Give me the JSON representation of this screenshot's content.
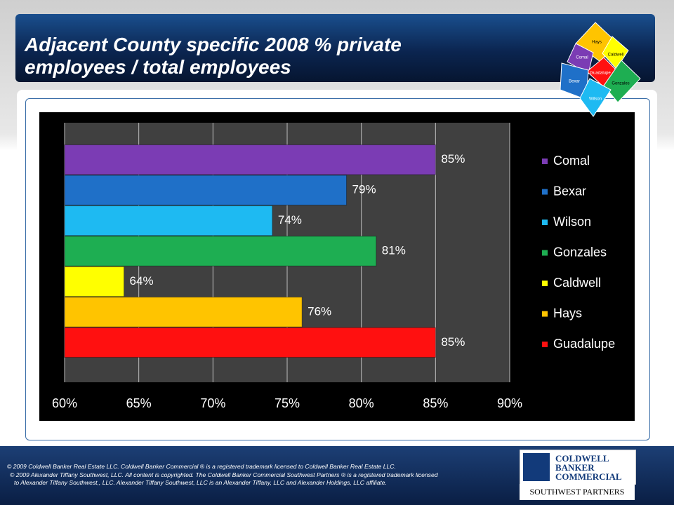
{
  "chart_data": {
    "type": "bar",
    "orientation": "horizontal",
    "title": "Adjacent County specific 2008 % private employees / total employees",
    "categories": [
      "Comal",
      "Bexar",
      "Wilson",
      "Gonzales",
      "Caldwell",
      "Hays",
      "Guadalupe"
    ],
    "series": [
      {
        "name": "Comal",
        "color": "#7b3cb4",
        "values": [
          85,
          null,
          null,
          null,
          null,
          null,
          null
        ],
        "value_labels": [
          "85%",
          null,
          null,
          null,
          null,
          null,
          null
        ]
      },
      {
        "name": "Bexar",
        "color": "#1f70c8",
        "values": [
          null,
          79,
          null,
          null,
          null,
          null,
          null
        ],
        "value_labels": [
          null,
          "79%",
          null,
          null,
          null,
          null,
          null
        ]
      },
      {
        "name": "Wilson",
        "color": "#1ebaf2",
        "values": [
          null,
          null,
          74,
          null,
          null,
          null,
          null
        ],
        "value_labels": [
          null,
          null,
          "74%",
          null,
          null,
          null,
          null
        ]
      },
      {
        "name": "Gonzales",
        "color": "#1eae52",
        "values": [
          null,
          null,
          null,
          81,
          null,
          null,
          null
        ],
        "value_labels": [
          null,
          null,
          null,
          "81%",
          null,
          null,
          null
        ]
      },
      {
        "name": "Caldwell",
        "color": "#ffff00",
        "values": [
          null,
          null,
          null,
          null,
          64,
          null,
          null
        ],
        "value_labels": [
          null,
          null,
          null,
          null,
          "64%",
          null,
          null
        ]
      },
      {
        "name": "Hays",
        "color": "#ffc400",
        "values": [
          null,
          null,
          null,
          null,
          null,
          76,
          null
        ],
        "value_labels": [
          null,
          null,
          null,
          null,
          null,
          "76%",
          null
        ]
      },
      {
        "name": "Guadalupe",
        "color": "#ff1010",
        "values": [
          null,
          null,
          null,
          null,
          null,
          null,
          85
        ],
        "value_labels": [
          null,
          null,
          null,
          null,
          null,
          null,
          "85%"
        ]
      }
    ],
    "xlim": [
      60,
      90
    ],
    "xticks": [
      {
        "value": 60,
        "label": "60%"
      },
      {
        "value": 65,
        "label": "65%"
      },
      {
        "value": 70,
        "label": "70%"
      },
      {
        "value": 75,
        "label": "75%"
      },
      {
        "value": 80,
        "label": "80%"
      },
      {
        "value": 85,
        "label": "85%"
      },
      {
        "value": 90,
        "label": "90%"
      }
    ],
    "grid": true,
    "legend": "right"
  },
  "map": {
    "labels": [
      "Hays",
      "Comal",
      "Caldwell",
      "Guadalupe",
      "Bexar",
      "Gonzales",
      "Wilson"
    ]
  },
  "footer": {
    "lines": [
      "© 2009 Coldwell Banker Real Estate LLC. Coldwell Banker Commercial ® is a registered trademark licensed to Coldwell Banker Real Estate LLC.",
      "© 2009 Alexander Tiffany Southwest, LLC. All content is copyrighted. The Coldwell Banker Commercial Southwest Partners ® is a registered trademark licensed",
      "to Alexander Tiffany Southwest,, LLC.  Alexander Tiffany Southwest, LLC is an Alexander Tiffany, LLC and Alexander Holdings, LLC affiliate."
    ]
  },
  "logo": {
    "lines": [
      "COLDWELL",
      "BANKER",
      "COMMERCIAL"
    ],
    "tagline": "SOUTHWEST PARTNERS"
  }
}
